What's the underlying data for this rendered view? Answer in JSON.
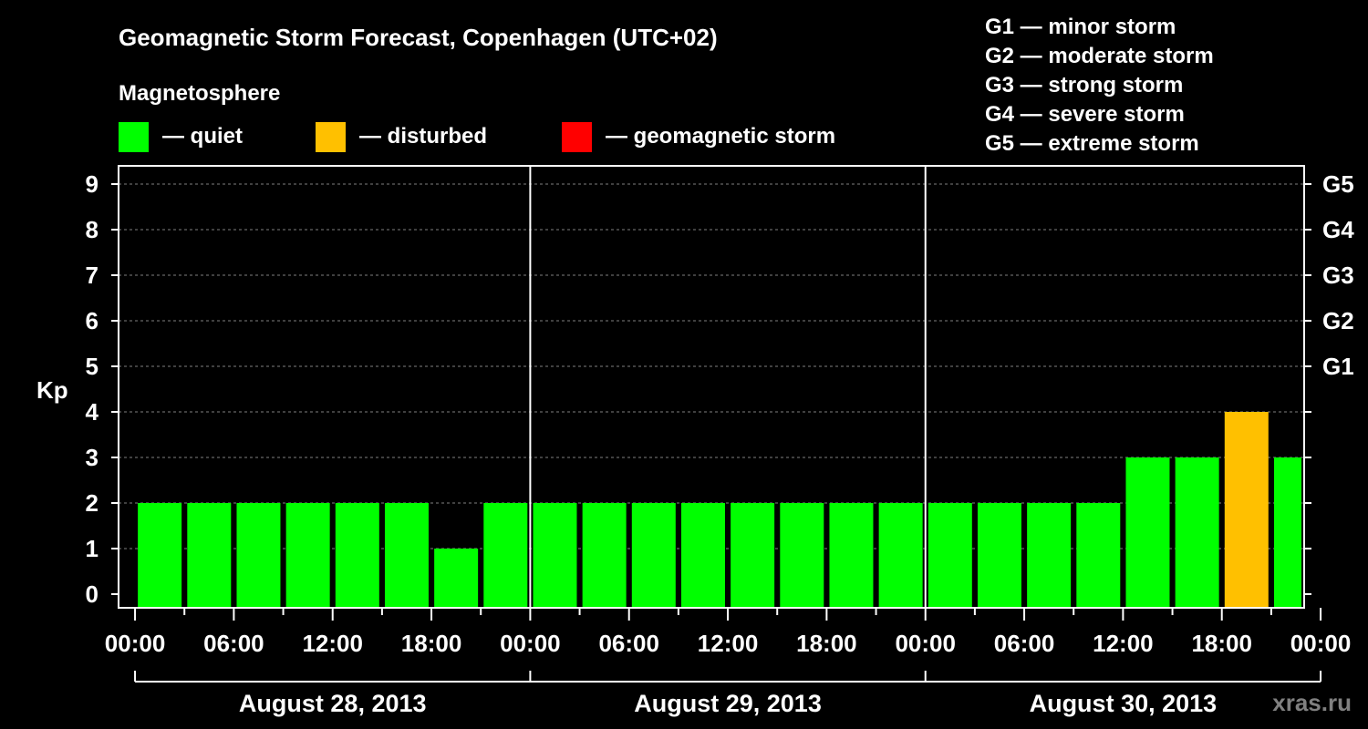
{
  "chart_data": {
    "type": "bar",
    "title": "Geomagnetic Storm Forecast, Copenhagen (UTC+02)",
    "legend": {
      "heading": "Magnetosphere",
      "items": [
        {
          "label": "— quiet",
          "color": "#00ff00"
        },
        {
          "label": "— disturbed",
          "color": "#ffc000"
        },
        {
          "label": "— geomagnetic storm",
          "color": "#ff0000"
        }
      ]
    },
    "storm_scale": [
      "G1 — minor storm",
      "G2 — moderate storm",
      "G3 — strong storm",
      "G4 — severe storm",
      "G5 — extreme storm"
    ],
    "ylabel": "Kp",
    "ylim": [
      0,
      9
    ],
    "yticks": [
      "0",
      "1",
      "2",
      "3",
      "4",
      "5",
      "6",
      "7",
      "8",
      "9"
    ],
    "right_axis_labels": [
      {
        "kp": 5,
        "label": "G1"
      },
      {
        "kp": 6,
        "label": "G2"
      },
      {
        "kp": 7,
        "label": "G3"
      },
      {
        "kp": 8,
        "label": "G4"
      },
      {
        "kp": 9,
        "label": "G5"
      }
    ],
    "xlim_hours": [
      -1,
      71
    ],
    "xtick_labels": [
      "00:00",
      "06:00",
      "12:00",
      "18:00",
      "00:00",
      "06:00",
      "12:00",
      "18:00",
      "00:00",
      "06:00",
      "12:00",
      "18:00",
      "00:00"
    ],
    "day_labels": [
      "August 28, 2013",
      "August 29, 2013",
      "August 30, 2013"
    ],
    "bar_hours": [
      1.5,
      4.5,
      7.5,
      10.5,
      13.5,
      16.5,
      19.5,
      22.5,
      25.5,
      28.5,
      31.5,
      34.5,
      37.5,
      40.5,
      43.5,
      46.5,
      49.5,
      52.5,
      55.5,
      58.5,
      61.5,
      64.5,
      67.5,
      70.5
    ],
    "values": [
      2,
      2,
      2,
      2,
      2,
      2,
      1,
      2,
      2,
      2,
      2,
      2,
      2,
      2,
      2,
      2,
      2,
      2,
      2,
      2,
      3,
      3,
      4,
      3
    ],
    "colors": {
      "quiet": "#00ff00",
      "disturbed": "#ffc000",
      "storm": "#ff0000",
      "grid": "#808080",
      "axis": "#ffffff"
    },
    "grid": true,
    "watermark": "xras.ru"
  }
}
